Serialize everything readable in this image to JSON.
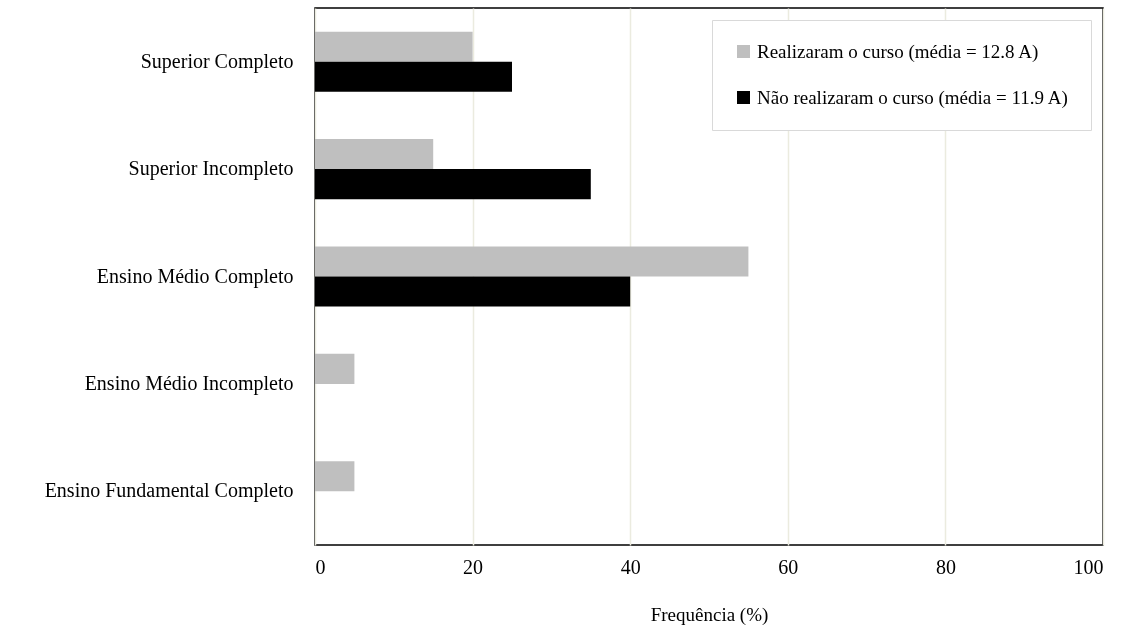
{
  "chart_data": {
    "type": "bar",
    "orientation": "horizontal",
    "xlabel": "Frequência (%)",
    "categories": [
      "Superior Completo",
      "Superior Incompleto",
      "Ensino Médio Completo",
      "Ensino Médio Incompleto",
      "Ensino Fundamental Completo"
    ],
    "series": [
      {
        "name": "Realizaram o curso (média = 12.8 A)",
        "color": "#bfbfbf",
        "values": [
          20,
          15,
          55,
          5,
          5
        ]
      },
      {
        "name": "Não realizaram o curso (média = 11.9 A)",
        "color": "#000000",
        "values": [
          25,
          35,
          40,
          null,
          null
        ]
      }
    ],
    "xlim": [
      0,
      100
    ],
    "xticks": [
      0,
      20,
      40,
      60,
      80,
      100
    ],
    "grid": "x",
    "legend": "top right"
  }
}
